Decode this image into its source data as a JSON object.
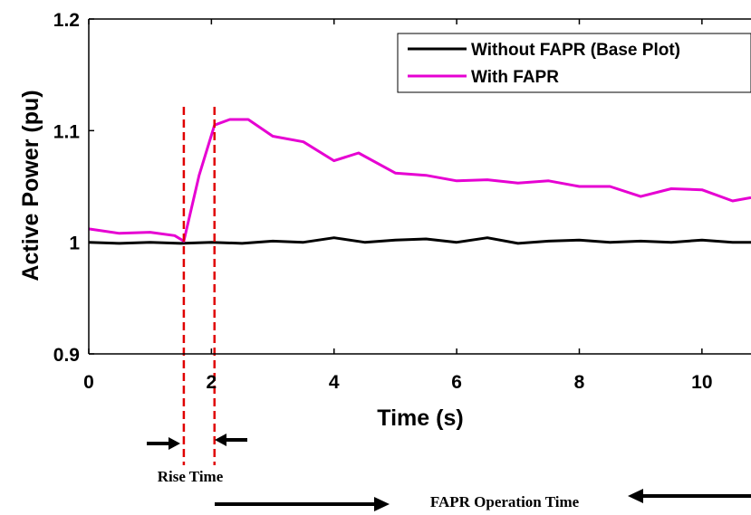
{
  "chart_data": {
    "type": "line",
    "xlabel": "Time (s)",
    "ylabel": "Active Power (pu)",
    "xlim": [
      0,
      10.8
    ],
    "ylim": [
      0.9,
      1.2
    ],
    "xticks": [
      "0",
      "2",
      "4",
      "6",
      "8",
      "10"
    ],
    "yticks": [
      "0.9",
      "1",
      "1.1",
      "1.2"
    ],
    "legend_position": "top-right",
    "series": [
      {
        "name": "Without FAPR (Base Plot)",
        "color": "#000000",
        "x": [
          0,
          0.5,
          1.0,
          1.5,
          2.0,
          2.5,
          3.0,
          3.5,
          4.0,
          4.5,
          5.0,
          5.5,
          6.0,
          6.5,
          7.0,
          7.5,
          8.0,
          8.5,
          9.0,
          9.5,
          10.0,
          10.5,
          10.8
        ],
        "y": [
          1.0,
          0.999,
          1.0,
          0.999,
          1.0,
          0.999,
          1.001,
          1.0,
          1.004,
          1.0,
          1.002,
          1.003,
          1.0,
          1.004,
          0.999,
          1.001,
          1.002,
          1.0,
          1.001,
          1.0,
          1.002,
          1.0,
          1.0
        ]
      },
      {
        "name": "With FAPR",
        "color": "#e600d2",
        "x": [
          0,
          0.5,
          1.0,
          1.4,
          1.55,
          1.8,
          2.05,
          2.3,
          2.6,
          3.0,
          3.5,
          4.0,
          4.4,
          5.0,
          5.5,
          6.0,
          6.5,
          7.0,
          7.5,
          8.0,
          8.5,
          9.0,
          9.5,
          10.0,
          10.5,
          10.8
        ],
        "y": [
          1.012,
          1.008,
          1.009,
          1.006,
          1.001,
          1.06,
          1.105,
          1.11,
          1.11,
          1.095,
          1.09,
          1.073,
          1.08,
          1.062,
          1.06,
          1.055,
          1.056,
          1.053,
          1.055,
          1.05,
          1.05,
          1.041,
          1.048,
          1.047,
          1.037,
          1.04
        ]
      }
    ],
    "markers": [
      {
        "x": 1.55,
        "color": "#e00000"
      },
      {
        "x": 2.05,
        "color": "#e00000"
      }
    ],
    "annotations": {
      "rise_time": "Rise Time",
      "operation_time": "FAPR Operation Time"
    }
  }
}
